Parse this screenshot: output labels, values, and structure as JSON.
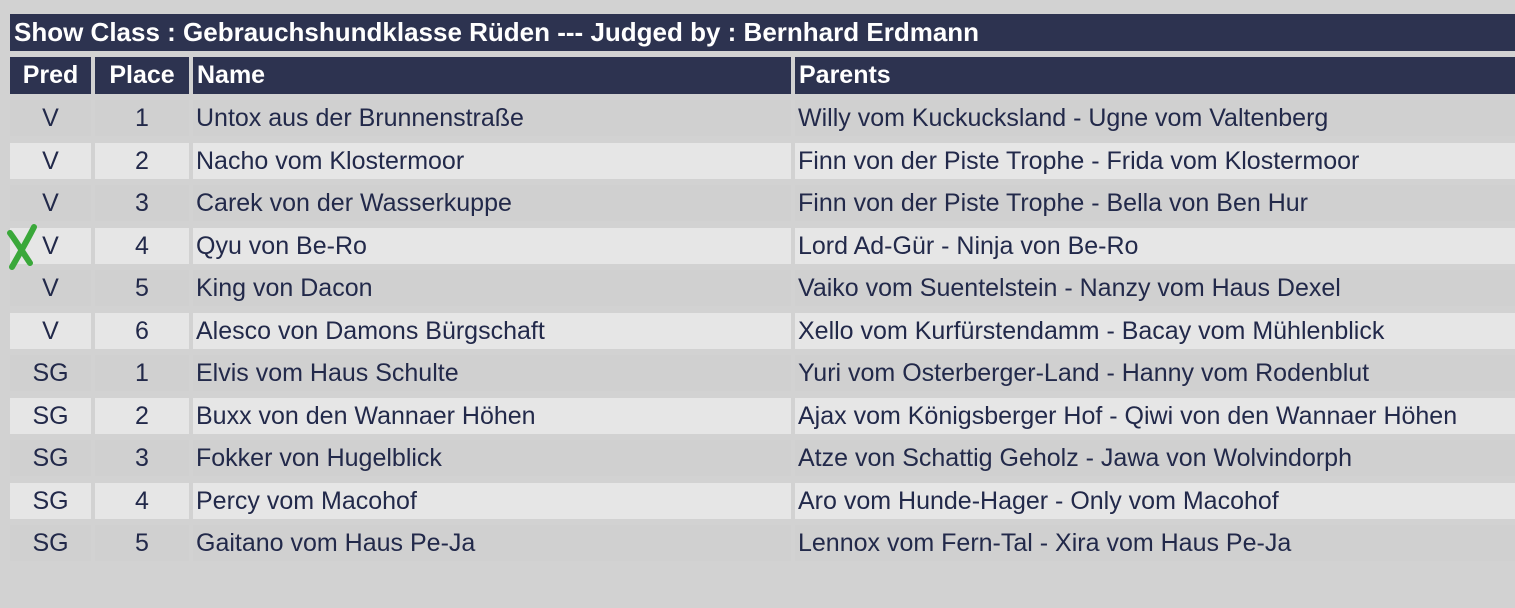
{
  "title": "Show Class : Gebrauchshundklasse Rüden --- Judged by : Bernhard Erdmann",
  "headers": {
    "pred": "Pred",
    "place": "Place",
    "name": "Name",
    "parents": "Parents"
  },
  "rows": [
    {
      "pred": "V",
      "place": "1",
      "name": "Untox aus der Brunnenstraße",
      "parents": "Willy vom Kuckucksland - Ugne vom Valtenberg"
    },
    {
      "pred": "V",
      "place": "2",
      "name": "Nacho vom Klostermoor",
      "parents": "Finn von der Piste Trophe - Frida vom Klostermoor"
    },
    {
      "pred": "V",
      "place": "3",
      "name": "Carek von der Wasserkuppe",
      "parents": "Finn von der Piste Trophe - Bella von Ben Hur"
    },
    {
      "pred": "V",
      "place": "4",
      "name": "Qyu von Be-Ro",
      "parents": "Lord Ad-Gür - Ninja von Be-Ro"
    },
    {
      "pred": "V",
      "place": "5",
      "name": "King von Dacon",
      "parents": "Vaiko vom Suentelstein - Nanzy vom Haus Dexel"
    },
    {
      "pred": "V",
      "place": "6",
      "name": "Alesco von Damons Bürgschaft",
      "parents": "Xello vom Kurfürstendamm - Bacay vom Mühlenblick"
    },
    {
      "pred": "SG",
      "place": "1",
      "name": "Elvis vom Haus Schulte",
      "parents": "Yuri vom Osterberger-Land - Hanny vom Rodenblut"
    },
    {
      "pred": "SG",
      "place": "2",
      "name": "Buxx von den Wannaer Höhen",
      "parents": "Ajax vom Königsberger Hof - Qiwi von den Wannaer Höhen"
    },
    {
      "pred": "SG",
      "place": "3",
      "name": "Fokker von Hugelblick",
      "parents": "Atze von Schattig Geholz - Jawa von Wolvindorph"
    },
    {
      "pred": "SG",
      "place": "4",
      "name": "Percy vom Macohof",
      "parents": "Aro vom Hunde-Hager - Only vom Macohof"
    },
    {
      "pred": "SG",
      "place": "5",
      "name": "Gaitano vom Haus Pe-Ja",
      "parents": "Lennox vom Fern-Tal - Xira vom Haus Pe-Ja"
    }
  ],
  "annotation": {
    "icon": "green-cross-mark-icon",
    "row_index": 3,
    "color": "#3aa83a"
  },
  "colors": {
    "header_bg": "#2d3350",
    "header_text": "#ffffff",
    "row_text": "#22294a",
    "row_odd": "#d0d0d0",
    "row_even": "#e6e6e6",
    "page_bg": "#d2d2d2"
  }
}
